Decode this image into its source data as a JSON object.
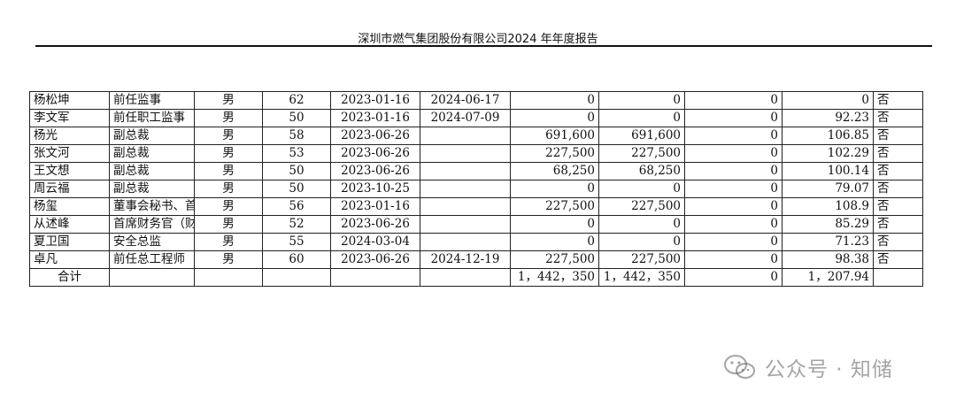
{
  "header": {
    "title": "深圳市燃气集团股份有限公司2024 年年度报告"
  },
  "rows": [
    {
      "name": "杨松坤",
      "position": "前任监事",
      "gender": "男",
      "age": "62",
      "start": "2023-01-16",
      "end": "2024-06-17",
      "shares_begin": "0",
      "shares_end": "0",
      "change": "0",
      "pay": "0",
      "related": "否"
    },
    {
      "name": "李文军",
      "position": "前任职工监事",
      "gender": "男",
      "age": "50",
      "start": "2023-01-16",
      "end": "2024-07-09",
      "shares_begin": "0",
      "shares_end": "0",
      "change": "0",
      "pay": "92.23",
      "related": "否"
    },
    {
      "name": "杨光",
      "position": "副总裁",
      "gender": "男",
      "age": "58",
      "start": "2023-06-26",
      "end": "",
      "shares_begin": "691,600",
      "shares_end": "691,600",
      "change": "0",
      "pay": "106.85",
      "related": "否"
    },
    {
      "name": "张文河",
      "position": "副总裁",
      "gender": "男",
      "age": "53",
      "start": "2023-06-26",
      "end": "",
      "shares_begin": "227,500",
      "shares_end": "227,500",
      "change": "0",
      "pay": "102.29",
      "related": "否"
    },
    {
      "name": "王文想",
      "position": "副总裁",
      "gender": "男",
      "age": "50",
      "start": "2023-06-26",
      "end": "",
      "shares_begin": "68,250",
      "shares_end": "68,250",
      "change": "0",
      "pay": "100.14",
      "related": "否"
    },
    {
      "name": "周云福",
      "position": "副总裁",
      "gender": "男",
      "age": "50",
      "start": "2023-10-25",
      "end": "",
      "shares_begin": "0",
      "shares_end": "0",
      "change": "0",
      "pay": "79.07",
      "related": "否"
    },
    {
      "name": "杨玺",
      "position": "董事会秘书、首席合规官",
      "gender": "男",
      "age": "56",
      "start": "2023-01-16",
      "end": "",
      "shares_begin": "227,500",
      "shares_end": "227,500",
      "change": "0",
      "pay": "108.9",
      "related": "否"
    },
    {
      "name": "从述峰",
      "position": "首席财务官（财务总监）",
      "gender": "男",
      "age": "52",
      "start": "2023-06-26",
      "end": "",
      "shares_begin": "0",
      "shares_end": "0",
      "change": "0",
      "pay": "85.29",
      "related": "否"
    },
    {
      "name": "夏卫国",
      "position": "安全总监",
      "gender": "男",
      "age": "55",
      "start": "2024-03-04",
      "end": "",
      "shares_begin": "0",
      "shares_end": "0",
      "change": "0",
      "pay": "71.23",
      "related": "否"
    },
    {
      "name": "卓凡",
      "position": "前任总工程师",
      "gender": "男",
      "age": "60",
      "start": "2023-06-26",
      "end": "2024-12-19",
      "shares_begin": "227,500",
      "shares_end": "227,500",
      "change": "0",
      "pay": "98.38",
      "related": "否"
    }
  ],
  "total": {
    "label": "合计",
    "shares_begin": "1，442，350",
    "shares_end": "1，442，350",
    "change": "0",
    "pay": "1，207.94"
  },
  "watermark": {
    "text": "公众号 · 知储",
    "icon": "wechat-icon"
  }
}
